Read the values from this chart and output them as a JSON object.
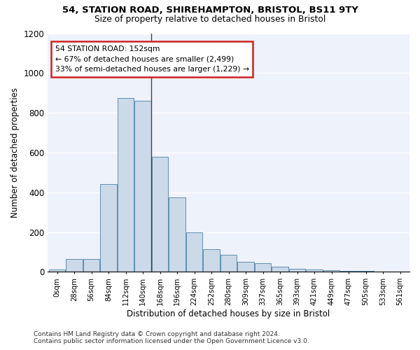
{
  "title": "54, STATION ROAD, SHIREHAMPTON, BRISTOL, BS11 9TY",
  "subtitle": "Size of property relative to detached houses in Bristol",
  "xlabel": "Distribution of detached houses by size in Bristol",
  "ylabel": "Number of detached properties",
  "bar_color": "#ccd9e8",
  "bar_edge_color": "#6090b0",
  "background_color": "#eef2fa",
  "categories": [
    "0sqm",
    "28sqm",
    "56sqm",
    "84sqm",
    "112sqm",
    "140sqm",
    "168sqm",
    "196sqm",
    "224sqm",
    "252sqm",
    "280sqm",
    "309sqm",
    "337sqm",
    "365sqm",
    "393sqm",
    "421sqm",
    "449sqm",
    "477sqm",
    "505sqm",
    "533sqm",
    "561sqm"
  ],
  "bar_values": [
    12,
    65,
    65,
    440,
    875,
    860,
    580,
    375,
    200,
    115,
    85,
    50,
    42,
    25,
    15,
    12,
    8,
    5,
    4,
    3,
    3
  ],
  "ylim": [
    0,
    1200
  ],
  "yticks": [
    0,
    200,
    400,
    600,
    800,
    1000,
    1200
  ],
  "property_bin_index": 5.5,
  "annotation_text": "54 STATION ROAD: 152sqm\n← 67% of detached houses are smaller (2,499)\n33% of semi-detached houses are larger (1,229) →",
  "vline_color": "#444444",
  "annotation_border_color": "#cc2222",
  "footer_line1": "Contains HM Land Registry data © Crown copyright and database right 2024.",
  "footer_line2": "Contains public sector information licensed under the Open Government Licence v3.0."
}
